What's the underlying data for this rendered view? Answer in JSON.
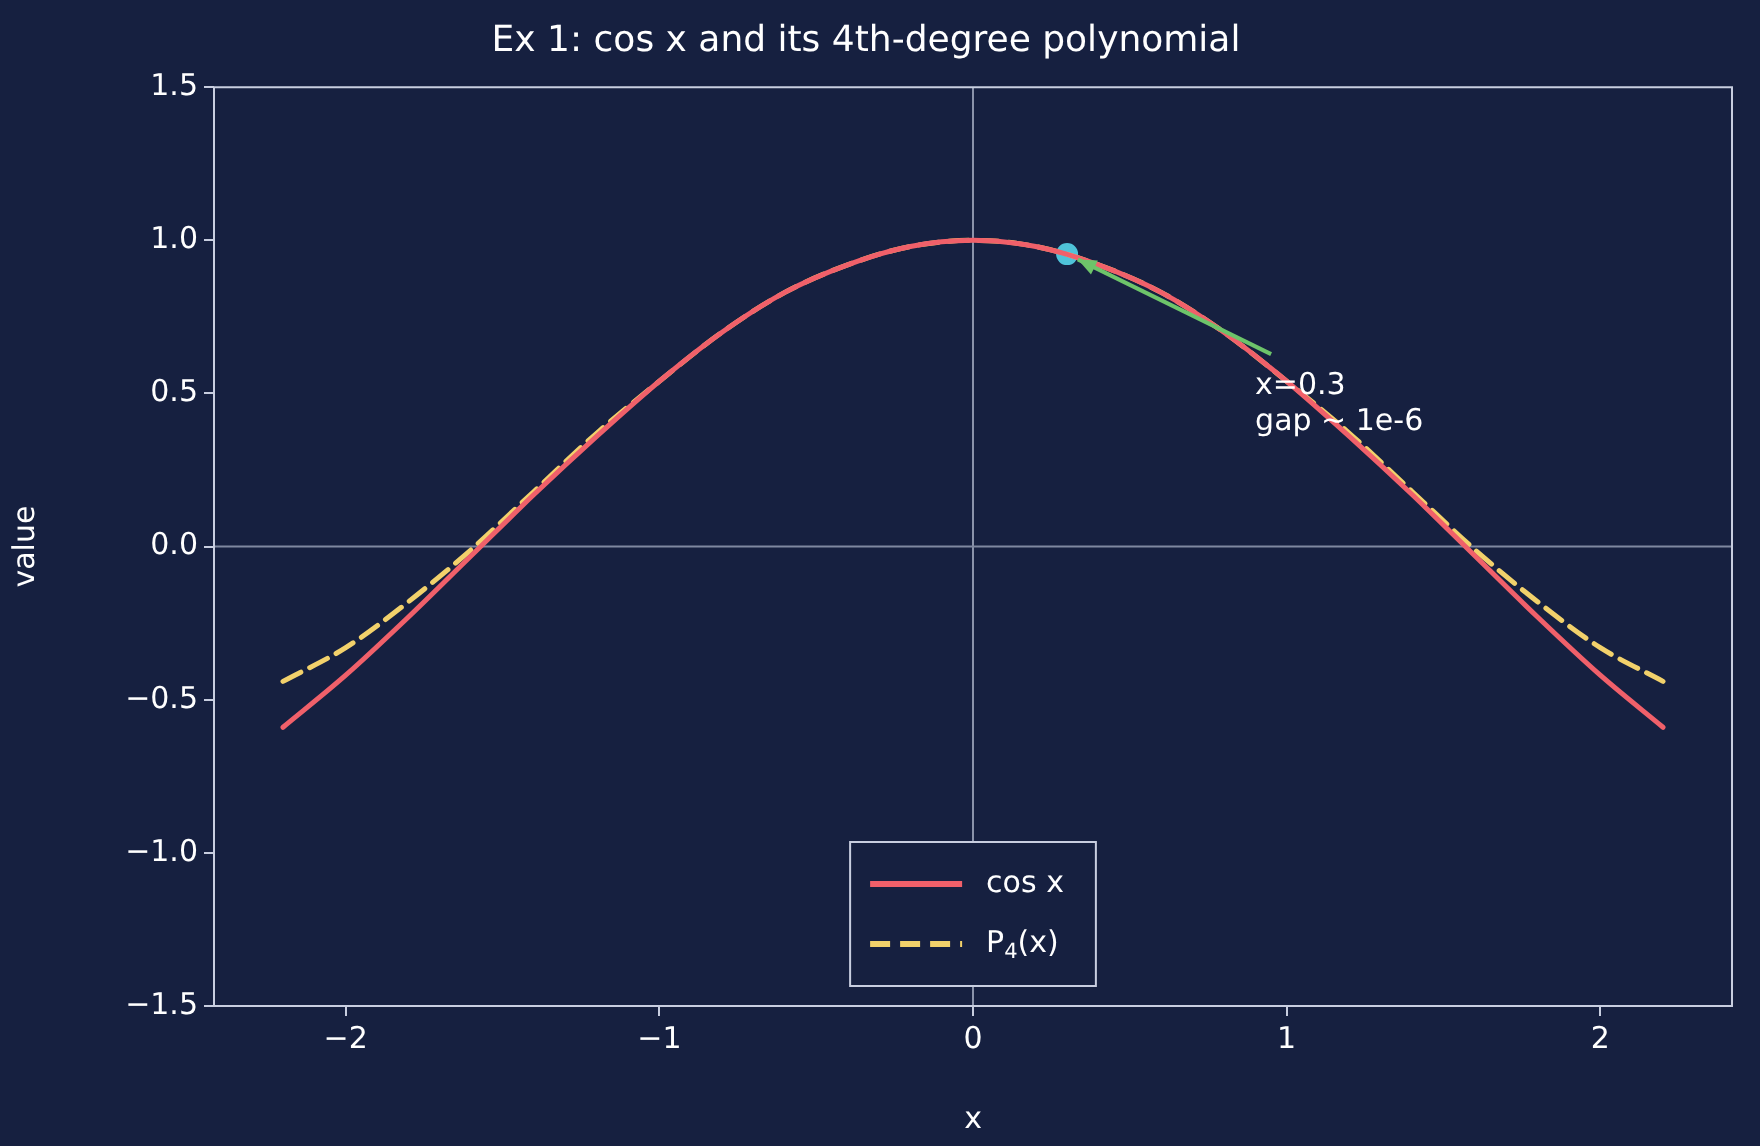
{
  "chart_data": {
    "type": "line",
    "title": "Ex 1: cos x and its 4th-degree polynomial",
    "xlabel": "x",
    "ylabel": "value",
    "xlim": [
      -2.42,
      2.42
    ],
    "xticks": [
      -2,
      -1,
      0,
      1,
      2
    ],
    "ylim": [
      -1.5,
      1.5
    ],
    "yticks": [
      -1.5,
      {
        "value": -1,
        "label": "−1.0"
      },
      -0.5,
      {
        "value": 0,
        "label": "0.0"
      },
      0.5,
      {
        "value": 1,
        "label": "1.0"
      },
      1.5
    ],
    "grid": false,
    "legend": "bottom",
    "marker": "none",
    "ref_lines": [
      {
        "axis": "x",
        "value": 0,
        "color": "#8a93aa"
      },
      {
        "axis": "y",
        "value": 0,
        "color": "#7f88a0"
      }
    ],
    "annotations": [
      {
        "text": "x=0.3\ngap ~ 1e-6",
        "x": 0.3,
        "y": 0.955
      }
    ],
    "series": [
      {
        "name": "cos x",
        "color": "#f0606a",
        "line_style": "solid",
        "x": [
          -2.2,
          -2.0,
          -1.8,
          -1.6,
          -1.4,
          -1.2,
          -1.0,
          -0.8,
          -0.6,
          -0.4,
          -0.2,
          0,
          0.2,
          0.4,
          0.6,
          0.8,
          1.0,
          1.2,
          1.4,
          1.6,
          1.8,
          2.0,
          2.2
        ],
        "values": [
          -0.59,
          -0.42,
          -0.23,
          -0.03,
          0.17,
          0.36,
          0.54,
          0.7,
          0.83,
          0.92,
          0.98,
          1.0,
          0.98,
          0.92,
          0.83,
          0.7,
          0.54,
          0.36,
          0.17,
          -0.03,
          -0.23,
          -0.42,
          -0.59
        ]
      },
      {
        "name": "P$_{4}$(x)",
        "color": "#f2d16b",
        "line_style": "dashed",
        "x": [
          -2.2,
          -2.0,
          -1.8,
          -1.6,
          -1.4,
          -1.2,
          -1.0,
          -0.8,
          -0.6,
          -0.4,
          -0.2,
          0,
          0.2,
          0.4,
          0.6,
          0.8,
          1.0,
          1.2,
          1.4,
          1.6,
          1.8,
          2.0,
          2.2
        ],
        "values": [
          -0.44,
          -0.33,
          -0.18,
          -0.01,
          0.18,
          0.37,
          0.54,
          0.7,
          0.83,
          0.92,
          0.98,
          1.0,
          0.98,
          0.92,
          0.83,
          0.7,
          0.54,
          0.37,
          0.18,
          -0.01,
          -0.18,
          -0.33,
          -0.44
        ]
      },
      {
        "type": "scatter",
        "marker": "circle",
        "color": "#4fc3d9",
        "x": [
          0.3
        ],
        "values": [
          0.955
        ]
      }
    ]
  }
}
